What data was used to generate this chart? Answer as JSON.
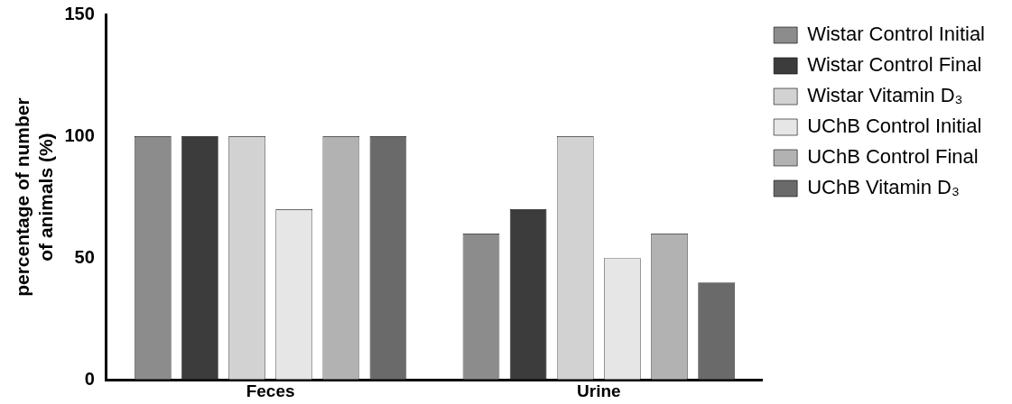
{
  "chart_data": {
    "type": "bar",
    "ylabel": "percentage of number of animals (%)",
    "categories": [
      "Feces",
      "Urine"
    ],
    "series": [
      {
        "name": "Wistar Control Initial",
        "color": "#8c8c8c",
        "values": [
          100,
          60
        ]
      },
      {
        "name": "Wistar Control Final",
        "color": "#3c3c3c",
        "values": [
          100,
          70
        ]
      },
      {
        "name": "Wistar Vitamin D₃",
        "color": "#d2d2d2",
        "values": [
          100,
          100
        ]
      },
      {
        "name": "UChB Control Initial",
        "color": "#e6e6e6",
        "values": [
          70,
          50
        ]
      },
      {
        "name": "UChB Control Final",
        "color": "#b2b2b2",
        "values": [
          100,
          60
        ]
      },
      {
        "name": "UChB Vitamin D₃",
        "color": "#6a6a6a",
        "values": [
          100,
          40
        ]
      }
    ],
    "ylim": [
      0,
      150
    ],
    "yticks": [
      0,
      50,
      100,
      150
    ],
    "grid": false,
    "legend": "right"
  }
}
